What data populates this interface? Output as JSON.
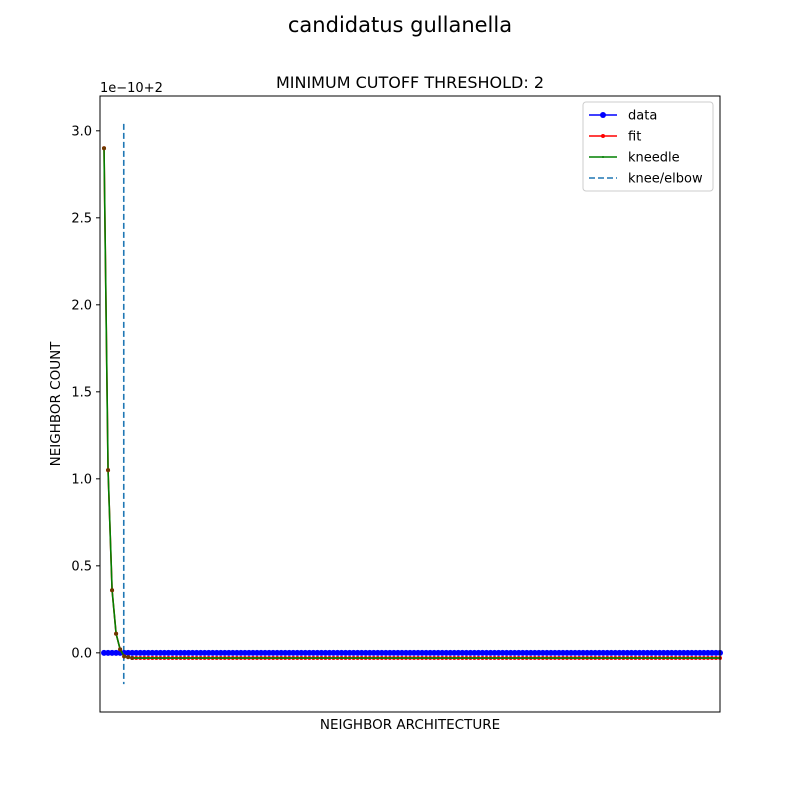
{
  "figure": {
    "suptitle": "candidatus gullanella"
  },
  "chart_data": {
    "type": "line",
    "title": "MINIMUM CUTOFF THRESHOLD: 2",
    "xlabel": "NEIGHBOR ARCHITECTURE",
    "ylabel": "NEIGHBOR COUNT",
    "y_offset_label": "1e−10+2",
    "x_ticks_visible": false,
    "xlim": [
      -1,
      153
    ],
    "ylim": [
      -0.34,
      3.2
    ],
    "yticks": [
      0.0,
      0.5,
      1.0,
      1.5,
      2.0,
      2.5,
      3.0
    ],
    "ytick_labels": [
      "0.0",
      "0.5",
      "1.0",
      "1.5",
      "2.0",
      "2.5",
      "3.0"
    ],
    "n_points": 154,
    "series": [
      {
        "name": "data",
        "color": "#0000ff",
        "marker": "circle",
        "values_head": [
          0.0,
          0.0,
          0.0,
          0.0,
          0.0,
          0.0
        ],
        "values_tail": 0.0
      },
      {
        "name": "fit",
        "color": "#ff0000",
        "marker": "point",
        "values_head": [
          2.9,
          1.05,
          0.36,
          0.11,
          0.02,
          -0.02,
          -0.025,
          -0.03
        ],
        "values_tail": -0.03
      },
      {
        "name": "kneedle",
        "color": "#008000",
        "marker": "pixel",
        "values_head": [
          2.9,
          1.05,
          0.36,
          0.11,
          0.02,
          -0.02,
          -0.025,
          -0.03
        ],
        "values_tail": -0.03
      }
    ],
    "knee": {
      "name": "knee/elbow",
      "color": "#1f77b4",
      "x": 4.9,
      "style": "dashed"
    },
    "legend": {
      "position": "upper-right",
      "entries": [
        "data",
        "fit",
        "kneedle",
        "knee/elbow"
      ]
    }
  }
}
